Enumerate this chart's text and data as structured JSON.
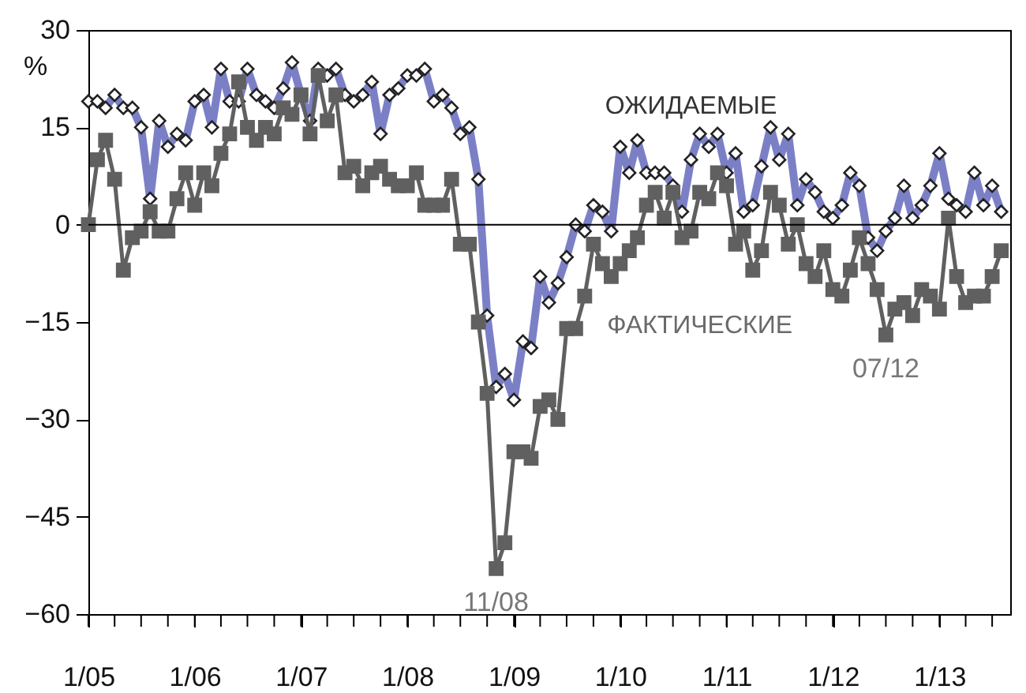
{
  "chart_data": {
    "type": "line",
    "ylabel": "%",
    "x": [
      "2005-01",
      "2005-02",
      "2005-03",
      "2005-04",
      "2005-05",
      "2005-06",
      "2005-07",
      "2005-08",
      "2005-09",
      "2005-10",
      "2005-11",
      "2005-12",
      "2006-01",
      "2006-02",
      "2006-03",
      "2006-04",
      "2006-05",
      "2006-06",
      "2006-07",
      "2006-08",
      "2006-09",
      "2006-10",
      "2006-11",
      "2006-12",
      "2007-01",
      "2007-02",
      "2007-03",
      "2007-04",
      "2007-05",
      "2007-06",
      "2007-07",
      "2007-08",
      "2007-09",
      "2007-10",
      "2007-11",
      "2007-12",
      "2008-01",
      "2008-02",
      "2008-03",
      "2008-04",
      "2008-05",
      "2008-06",
      "2008-07",
      "2008-08",
      "2008-09",
      "2008-10",
      "2008-11",
      "2008-12",
      "2009-01",
      "2009-02",
      "2009-03",
      "2009-04",
      "2009-05",
      "2009-06",
      "2009-07",
      "2009-08",
      "2009-09",
      "2009-10",
      "2009-11",
      "2009-12",
      "2010-01",
      "2010-02",
      "2010-03",
      "2010-04",
      "2010-05",
      "2010-06",
      "2010-07",
      "2010-08",
      "2010-09",
      "2010-10",
      "2010-11",
      "2010-12",
      "2011-01",
      "2011-02",
      "2011-03",
      "2011-04",
      "2011-05",
      "2011-06",
      "2011-07",
      "2011-08",
      "2011-09",
      "2011-10",
      "2011-11",
      "2011-12",
      "2012-01",
      "2012-02",
      "2012-03",
      "2012-04",
      "2012-05",
      "2012-06",
      "2012-07",
      "2012-08",
      "2012-09",
      "2012-10",
      "2012-11",
      "2012-12",
      "2013-01",
      "2013-02",
      "2013-03",
      "2013-04",
      "2013-05",
      "2013-06",
      "2013-07",
      "2013-08"
    ],
    "series": [
      {
        "name": "ОЖИДАЕМЫЕ",
        "color": "#7b80c6",
        "marker": "diamond",
        "values": [
          19,
          19,
          18,
          20,
          18,
          18,
          15,
          4,
          16,
          12,
          14,
          13,
          19,
          20,
          15,
          24,
          19,
          19,
          24,
          20,
          19,
          18,
          21,
          25,
          20,
          16,
          24,
          23,
          24,
          20,
          19,
          20,
          22,
          14,
          20,
          21,
          23,
          23,
          24,
          19,
          20,
          18,
          14,
          15,
          7,
          -14,
          -25,
          -23,
          -27,
          -18,
          -19,
          -8,
          -12,
          -9,
          -5,
          0,
          -1,
          3,
          2,
          -1,
          12,
          8,
          13,
          8,
          8,
          8,
          6,
          2,
          10,
          14,
          12,
          14,
          8,
          11,
          2,
          3,
          9,
          15,
          10,
          14,
          3,
          7,
          5,
          2,
          1,
          3,
          8,
          6,
          -2,
          -4,
          -1,
          1,
          6,
          1,
          3,
          6,
          11,
          4,
          3,
          2,
          8,
          3,
          6,
          2
        ]
      },
      {
        "name": "ФАКТИЧЕСКИЕ",
        "color": "#606060",
        "marker": "square",
        "values": [
          0,
          10,
          13,
          7,
          -7,
          -2,
          -1,
          2,
          -1,
          -1,
          4,
          8,
          3,
          8,
          6,
          11,
          14,
          22,
          15,
          13,
          15,
          14,
          18,
          17,
          20,
          14,
          23,
          16,
          20,
          8,
          9,
          6,
          8,
          9,
          7,
          6,
          6,
          8,
          3,
          3,
          3,
          7,
          -3,
          -3,
          -15,
          -26,
          -53,
          -49,
          -35,
          -35,
          -36,
          -28,
          -27,
          -30,
          -16,
          -16,
          -11,
          -3,
          -6,
          -8,
          -6,
          -4,
          -2,
          3,
          5,
          1,
          5,
          -2,
          -1,
          5,
          4,
          8,
          6,
          -3,
          -1,
          -7,
          -4,
          5,
          3,
          -3,
          0,
          -6,
          -8,
          -4,
          -10,
          -11,
          -7,
          -2,
          -6,
          -10,
          -17,
          -13,
          -12,
          -14,
          -10,
          -11,
          -13,
          1,
          -8,
          -12,
          -11,
          -11,
          -8,
          -4
        ]
      }
    ],
    "ylim": [
      -60,
      30
    ],
    "yticks": [
      -60,
      -45,
      -30,
      -15,
      0,
      15,
      30
    ],
    "xlim": [
      "2005-01",
      "2013-09"
    ],
    "xticks": [
      {
        "value": "2005-01",
        "label": "1/05"
      },
      {
        "value": "2005-04",
        "label": null
      },
      {
        "value": "2005-07",
        "label": null
      },
      {
        "value": "2005-10",
        "label": null
      },
      {
        "value": "2006-01",
        "label": "1/06"
      },
      {
        "value": "2006-04",
        "label": null
      },
      {
        "value": "2006-07",
        "label": null
      },
      {
        "value": "2006-10",
        "label": null
      },
      {
        "value": "2007-01",
        "label": "1/07"
      },
      {
        "value": "2007-04",
        "label": null
      },
      {
        "value": "2007-07",
        "label": null
      },
      {
        "value": "2007-10",
        "label": null
      },
      {
        "value": "2008-01",
        "label": "1/08"
      },
      {
        "value": "2008-04",
        "label": null
      },
      {
        "value": "2008-07",
        "label": null
      },
      {
        "value": "2008-10",
        "label": null
      },
      {
        "value": "2009-01",
        "label": "1/09"
      },
      {
        "value": "2009-04",
        "label": null
      },
      {
        "value": "2009-07",
        "label": null
      },
      {
        "value": "2009-10",
        "label": null
      },
      {
        "value": "2010-01",
        "label": "1/10"
      },
      {
        "value": "2010-04",
        "label": null
      },
      {
        "value": "2010-07",
        "label": null
      },
      {
        "value": "2010-10",
        "label": null
      },
      {
        "value": "2011-01",
        "label": "1/11"
      },
      {
        "value": "2011-04",
        "label": null
      },
      {
        "value": "2011-07",
        "label": null
      },
      {
        "value": "2011-10",
        "label": null
      },
      {
        "value": "2012-01",
        "label": "1/12"
      },
      {
        "value": "2012-04",
        "label": null
      },
      {
        "value": "2012-07",
        "label": null
      },
      {
        "value": "2012-10",
        "label": null
      },
      {
        "value": "2013-01",
        "label": "1/13"
      },
      {
        "value": "2013-04",
        "label": null
      },
      {
        "value": "2013-07",
        "label": null
      }
    ],
    "ref_lines": [
      {
        "axis": "y",
        "value": 0
      }
    ],
    "annotations": [
      {
        "text": "11/08",
        "x": "2008-11",
        "y": -53
      },
      {
        "text": "07/12",
        "x": "2012-07",
        "y": -17
      }
    ],
    "grid": false,
    "legend": false
  }
}
